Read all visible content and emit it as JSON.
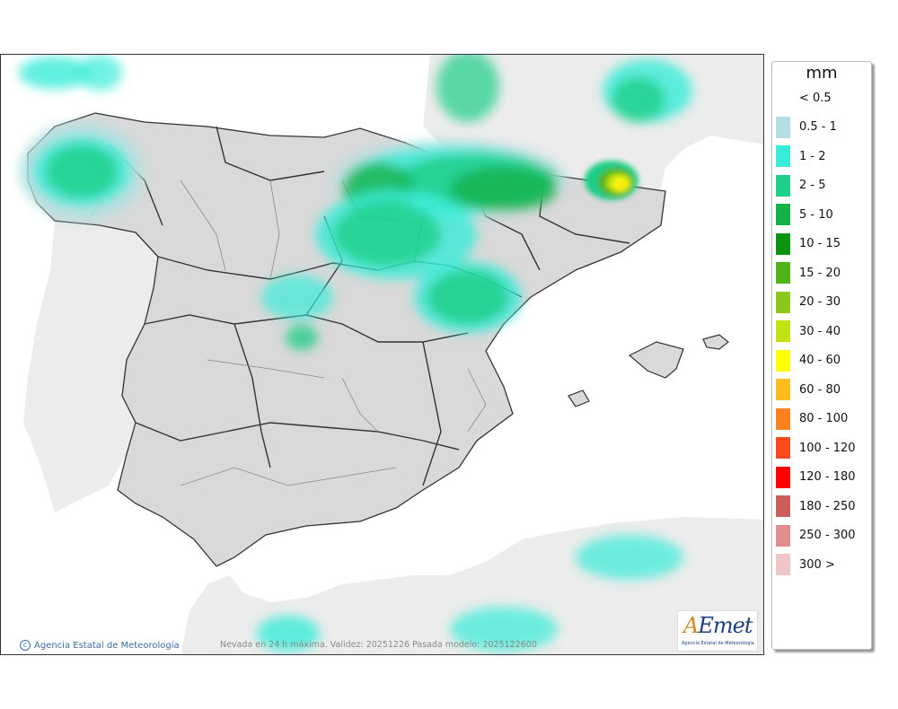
{
  "legend": {
    "unit": "mm",
    "items": [
      {
        "label": "< 0.5",
        "color": ""
      },
      {
        "label": "0.5 - 1",
        "color": "#b4dfe2"
      },
      {
        "label": "1 - 2",
        "color": "#39ecd7"
      },
      {
        "label": "2 - 5",
        "color": "#1fce88"
      },
      {
        "label": "5 - 10",
        "color": "#15b24a"
      },
      {
        "label": "10 - 15",
        "color": "#0c9411"
      },
      {
        "label": "15 - 20",
        "color": "#52b21a"
      },
      {
        "label": "20 - 30",
        "color": "#8cc81b"
      },
      {
        "label": "30 - 40",
        "color": "#c4e114"
      },
      {
        "label": "40 - 60",
        "color": "#ffff00"
      },
      {
        "label": "60 - 80",
        "color": "#ffbc1e"
      },
      {
        "label": "80 - 100",
        "color": "#ff801e"
      },
      {
        "label": "100 - 120",
        "color": "#ff4a1e"
      },
      {
        "label": "120 - 180",
        "color": "#ff0000"
      },
      {
        "label": "180 - 250",
        "color": "#cd5c5c"
      },
      {
        "label": "250 - 300",
        "color": "#df8d8d"
      },
      {
        "label": "300 >",
        "color": "#efc6c6"
      }
    ]
  },
  "credit": {
    "icon": "copyright-icon",
    "text": "Agencia Estatal de Meteorología"
  },
  "footnote": "Nevada en 24 h máxima. Validez: 20251226 Pasada modelo: 2025122600",
  "logo": {
    "word": "AEmet",
    "sub": "Agencia Estatal de Meteorología"
  },
  "colors": {
    "sea": "#ffffff",
    "land": "#d9d9d9",
    "neighbour_land": "#ececec",
    "border": "#333333"
  }
}
